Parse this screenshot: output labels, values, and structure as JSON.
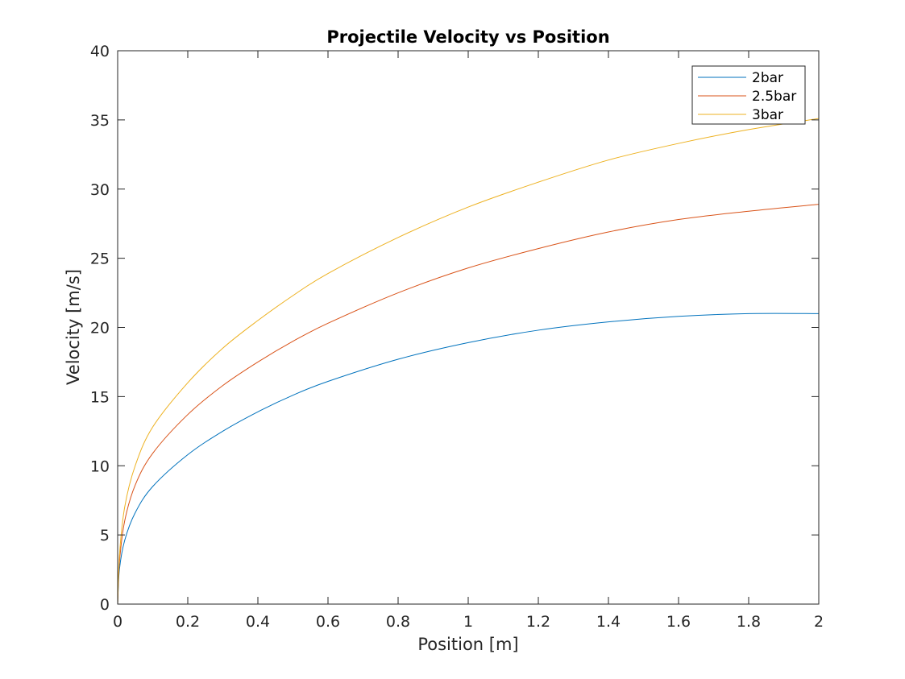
{
  "chart_data": {
    "type": "line",
    "title": "Projectile Velocity vs Position",
    "xlabel": "Position [m]",
    "ylabel": "Velocity [m/s]",
    "xlim": [
      0,
      2
    ],
    "ylim": [
      0,
      40
    ],
    "xticks": [
      "0",
      "0.2",
      "0.4",
      "0.6",
      "0.8",
      "1",
      "1.2",
      "1.4",
      "1.6",
      "1.8",
      "2"
    ],
    "yticks": [
      "0",
      "5",
      "10",
      "15",
      "20",
      "25",
      "30",
      "35",
      "40"
    ],
    "grid": false,
    "legend_position": "top-right",
    "x": [
      0,
      0.005,
      0.02,
      0.05,
      0.1,
      0.2,
      0.3,
      0.4,
      0.5,
      0.6,
      0.8,
      1.0,
      1.2,
      1.4,
      1.6,
      1.8,
      2.0
    ],
    "series": [
      {
        "name": "2bar",
        "color": "#0072BD",
        "values": [
          0,
          2.5,
          4.6,
          6.6,
          8.5,
          10.8,
          12.5,
          13.9,
          15.1,
          16.1,
          17.7,
          18.9,
          19.8,
          20.4,
          20.8,
          21.0,
          21.0
        ]
      },
      {
        "name": "2.5bar",
        "color": "#D95319",
        "values": [
          0,
          3.0,
          6.0,
          8.6,
          10.9,
          13.7,
          15.8,
          17.5,
          19.0,
          20.3,
          22.5,
          24.3,
          25.7,
          26.9,
          27.8,
          28.4,
          28.9
        ]
      },
      {
        "name": "3bar",
        "color": "#EDB120",
        "values": [
          0,
          3.5,
          7.0,
          10.0,
          12.8,
          16.0,
          18.5,
          20.5,
          22.3,
          23.9,
          26.5,
          28.7,
          30.5,
          32.1,
          33.3,
          34.3,
          35.1
        ]
      }
    ]
  }
}
